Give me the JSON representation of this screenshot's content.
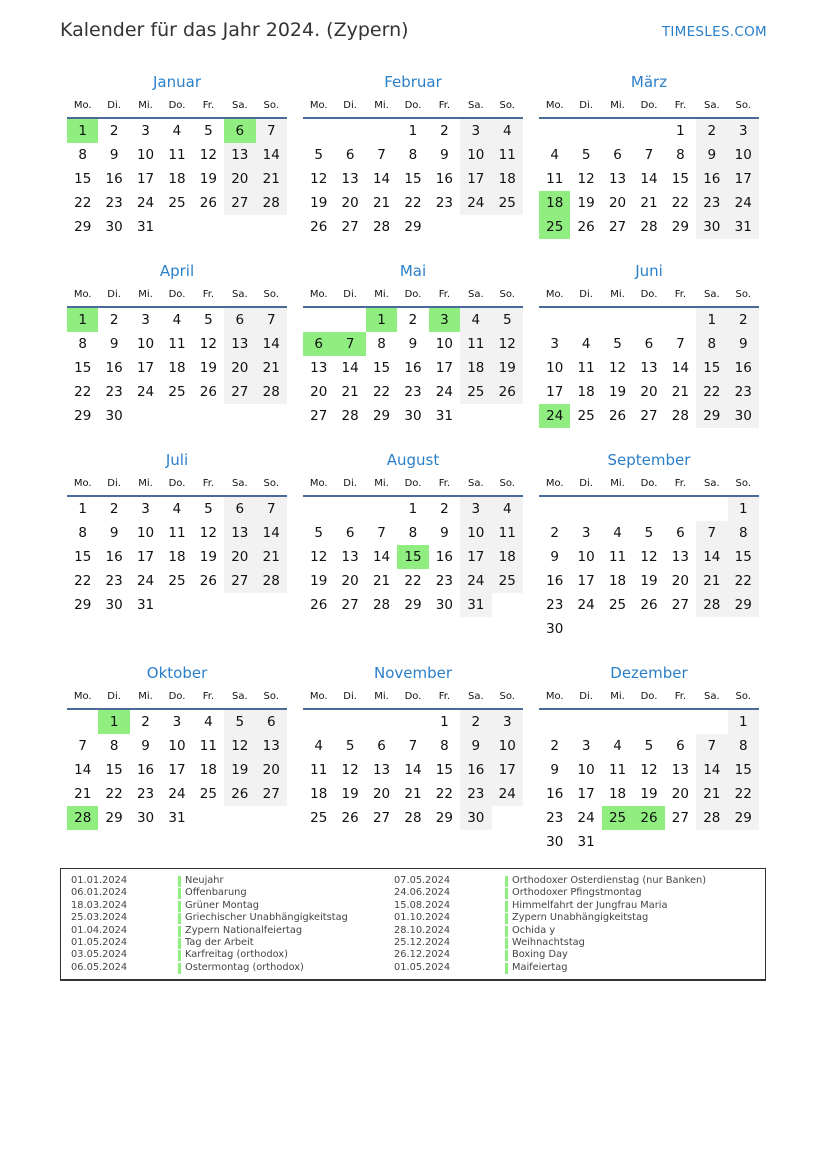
{
  "header": {
    "title": "Kalender für das Jahr 2024. (Zypern)",
    "brand": "TIMESLES.COM"
  },
  "weekdays": [
    "Mo.",
    "Di.",
    "Mi.",
    "Do.",
    "Fr.",
    "Sa.",
    "So."
  ],
  "colors": {
    "holiday": "#90ee80",
    "weekend": "#f2f2f2",
    "month_title": "#2a7fc9"
  },
  "months": [
    {
      "name": "Januar",
      "first_weekday": 0,
      "days": 31,
      "holidays": [
        1,
        6
      ]
    },
    {
      "name": "Februar",
      "first_weekday": 3,
      "days": 29,
      "holidays": []
    },
    {
      "name": "März",
      "first_weekday": 4,
      "days": 31,
      "holidays": [
        18,
        25
      ]
    },
    {
      "name": "April",
      "first_weekday": 0,
      "days": 30,
      "holidays": [
        1
      ]
    },
    {
      "name": "Mai",
      "first_weekday": 2,
      "days": 31,
      "holidays": [
        1,
        3,
        6,
        7
      ]
    },
    {
      "name": "Juni",
      "first_weekday": 5,
      "days": 30,
      "holidays": [
        24
      ]
    },
    {
      "name": "Juli",
      "first_weekday": 0,
      "days": 31,
      "holidays": []
    },
    {
      "name": "August",
      "first_weekday": 3,
      "days": 31,
      "holidays": [
        15
      ]
    },
    {
      "name": "September",
      "first_weekday": 6,
      "days": 30,
      "holidays": []
    },
    {
      "name": "Oktober",
      "first_weekday": 1,
      "days": 31,
      "holidays": [
        1,
        28
      ]
    },
    {
      "name": "November",
      "first_weekday": 4,
      "days": 30,
      "holidays": []
    },
    {
      "name": "Dezember",
      "first_weekday": 6,
      "days": 31,
      "holidays": [
        25,
        26
      ]
    }
  ],
  "holidays_list": [
    {
      "date": "01.01.2024",
      "name": "Neujahr"
    },
    {
      "date": "06.01.2024",
      "name": "Offenbarung"
    },
    {
      "date": "18.03.2024",
      "name": "Grüner Montag"
    },
    {
      "date": "25.03.2024",
      "name": "Griechischer Unabhängigkeitstag"
    },
    {
      "date": "01.04.2024",
      "name": "Zypern Nationalfeiertag"
    },
    {
      "date": "01.05.2024",
      "name": "Tag der Arbeit"
    },
    {
      "date": "03.05.2024",
      "name": "Karfreitag (orthodox)"
    },
    {
      "date": "06.05.2024",
      "name": "Ostermontag (orthodox)"
    },
    {
      "date": "07.05.2024",
      "name": "Orthodoxer Osterdienstag (nur Banken)"
    },
    {
      "date": "24.06.2024",
      "name": "Orthodoxer Pfingstmontag"
    },
    {
      "date": "15.08.2024",
      "name": "Himmelfahrt der Jungfrau Maria"
    },
    {
      "date": "01.10.2024",
      "name": "Zypern Unabhängigkeitstag"
    },
    {
      "date": "28.10.2024",
      "name": "Ochida y"
    },
    {
      "date": "25.12.2024",
      "name": "Weihnachtstag"
    },
    {
      "date": "26.12.2024",
      "name": "Boxing Day"
    },
    {
      "date": "01.05.2024",
      "name": "Maifeiertag"
    }
  ]
}
